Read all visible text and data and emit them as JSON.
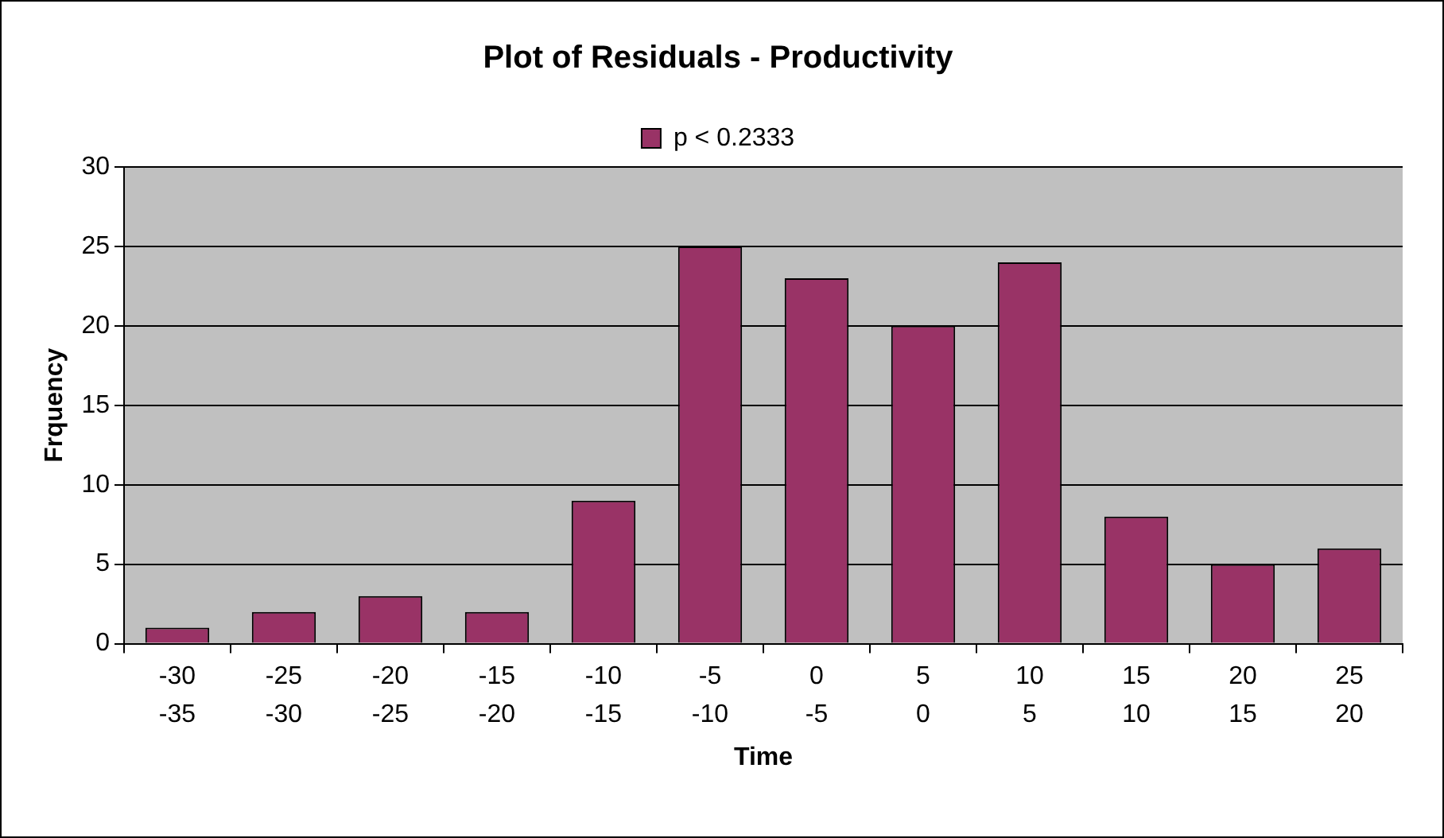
{
  "chart_data": {
    "type": "bar",
    "title": "Plot of Residuals - Productivity",
    "xlabel": "Time",
    "ylabel": "Frquency",
    "categories": [
      "-30\n-35",
      "-25\n-30",
      "-20\n-25",
      "-15\n-20",
      "-10\n-15",
      "-5\n-10",
      "0\n-5",
      "5\n0",
      "10\n5",
      "15\n10",
      "20\n15",
      "25\n20"
    ],
    "series": [
      {
        "name": "p < 0.2333",
        "color": "#993366",
        "values": [
          1,
          2,
          3,
          2,
          9,
          25,
          23,
          20,
          24,
          8,
          5,
          6
        ]
      }
    ],
    "ylim": [
      0,
      30
    ],
    "yticks": [
      0,
      5,
      10,
      15,
      20,
      25,
      30
    ],
    "grid": "y",
    "legend": "top"
  }
}
